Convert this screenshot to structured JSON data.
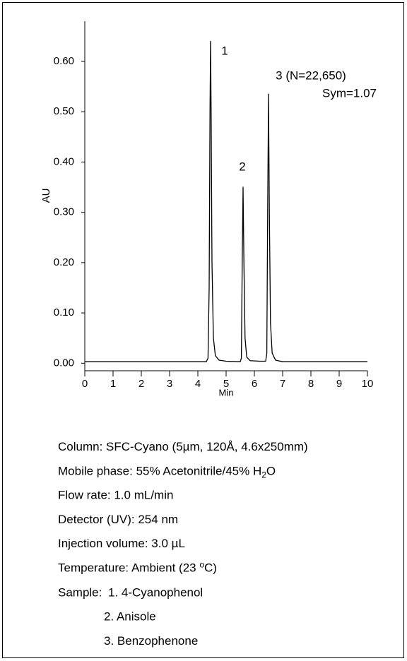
{
  "chart_data": {
    "type": "line",
    "x_label": "Min",
    "y_label": "AU",
    "xlim": [
      0,
      10
    ],
    "xticks": [
      0,
      1,
      2,
      3,
      4,
      5,
      6,
      7,
      8,
      9,
      10
    ],
    "ylim": [
      -0.015,
      0.68
    ],
    "yticks": [
      {
        "value": 0,
        "label": "0.00"
      },
      {
        "value": 0.1,
        "label": "0.10"
      },
      {
        "value": 0.2,
        "label": "0.20"
      },
      {
        "value": 0.3,
        "label": "0.30"
      },
      {
        "value": 0.4,
        "label": "0.40"
      },
      {
        "value": 0.5,
        "label": "0.50"
      },
      {
        "value": 0.6,
        "label": "0.60"
      }
    ],
    "color": "#000000",
    "x": [
      0,
      4.3,
      4.36,
      4.4,
      4.43,
      4.45,
      4.47,
      4.5,
      4.55,
      4.62,
      4.75,
      5.0,
      5.5,
      5.54,
      5.57,
      5.6,
      5.63,
      5.67,
      5.73,
      5.85,
      6.2,
      6.4,
      6.44,
      6.47,
      6.5,
      6.53,
      6.57,
      6.63,
      6.75,
      7.0,
      10
    ],
    "values": [
      0.003,
      0.003,
      0.01,
      0.15,
      0.5,
      0.64,
      0.5,
      0.2,
      0.05,
      0.015,
      0.006,
      0.004,
      0.003,
      0.01,
      0.2,
      0.35,
      0.2,
      0.05,
      0.012,
      0.005,
      0.004,
      0.004,
      0.02,
      0.3,
      0.535,
      0.3,
      0.08,
      0.02,
      0.006,
      0.003,
      0.003
    ],
    "annotations": [
      "1",
      "2",
      "3 (N=22,650)",
      "Sym=1.07"
    ],
    "conditions": [
      [
        "Column: SFC-Cyano (5µm, 120Å, 4.6x250mm)"
      ],
      [
        "Mobile phase: 55% Acetonitrile/45% H",
        {
          "sub": "2"
        },
        "O"
      ],
      [
        "Flow rate: 1.0 mL/min"
      ],
      [
        "Detector (UV): 254 nm"
      ],
      [
        "Injection volume: 3.0 µL"
      ],
      [
        "Temperature: Ambient (23 ",
        {
          "sup": "o"
        },
        "C)"
      ]
    ],
    "sample_label": "Sample:",
    "sample_items": [
      "1. 4-Cyanophenol",
      "2. Anisole",
      "3. Benzophenone"
    ]
  }
}
